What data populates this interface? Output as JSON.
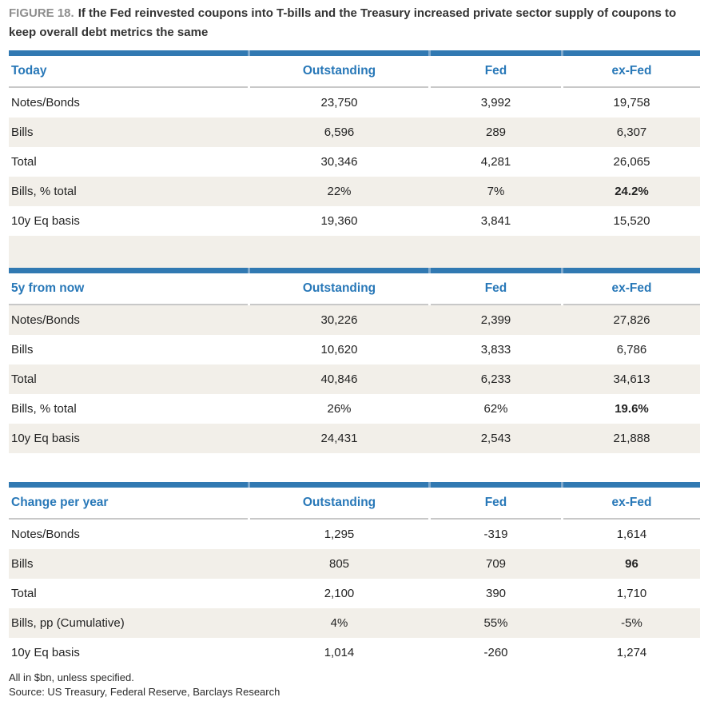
{
  "figure": {
    "label": "FIGURE 18.",
    "title": "If the Fed reinvested coupons into T-bills and the Treasury increased private sector supply of coupons to keep overall debt metrics the same"
  },
  "colors": {
    "accent_blue_bar": "#3179B2",
    "accent_blue_text": "#2878B8",
    "stripe_beige": "#F2EFE9",
    "divider_gray": "#C8C8C8",
    "figure_label_gray": "#8E8E8E",
    "text_dark": "#232323"
  },
  "columns": [
    "Outstanding",
    "Fed",
    "ex-Fed"
  ],
  "tables": [
    {
      "title": "Today",
      "first_row_shaded": false,
      "spacer_after": "shaded",
      "rows": [
        {
          "label": "Notes/Bonds",
          "values": [
            "23,750",
            "3,992",
            "19,758"
          ],
          "bold": []
        },
        {
          "label": "Bills",
          "values": [
            "6,596",
            "289",
            "6,307"
          ],
          "bold": []
        },
        {
          "label": "Total",
          "values": [
            "30,346",
            "4,281",
            "26,065"
          ],
          "bold": []
        },
        {
          "label": "Bills, % total",
          "values": [
            "22%",
            "7%",
            "24.2%"
          ],
          "bold": [
            2
          ]
        },
        {
          "label": "10y Eq basis",
          "values": [
            "19,360",
            "3,841",
            "15,520"
          ],
          "bold": []
        }
      ]
    },
    {
      "title": "5y from now",
      "first_row_shaded": true,
      "spacer_after": "plain",
      "rows": [
        {
          "label": "Notes/Bonds",
          "values": [
            "30,226",
            "2,399",
            "27,826"
          ],
          "bold": []
        },
        {
          "label": "Bills",
          "values": [
            "10,620",
            "3,833",
            "6,786"
          ],
          "bold": []
        },
        {
          "label": "Total",
          "values": [
            "40,846",
            "6,233",
            "34,613"
          ],
          "bold": []
        },
        {
          "label": "Bills, % total",
          "values": [
            "26%",
            "62%",
            "19.6%"
          ],
          "bold": [
            2
          ]
        },
        {
          "label": "10y Eq basis",
          "values": [
            "24,431",
            "2,543",
            "21,888"
          ],
          "bold": []
        }
      ]
    },
    {
      "title": "Change per year",
      "first_row_shaded": false,
      "spacer_after": "none",
      "rows": [
        {
          "label": "Notes/Bonds",
          "values": [
            "1,295",
            "-319",
            "1,614"
          ],
          "bold": []
        },
        {
          "label": "Bills",
          "values": [
            "805",
            "709",
            "96"
          ],
          "bold": [
            2
          ]
        },
        {
          "label": "Total",
          "values": [
            "2,100",
            "390",
            "1,710"
          ],
          "bold": []
        },
        {
          "label": "Bills, pp (Cumulative)",
          "values": [
            "4%",
            "55%",
            "-5%"
          ],
          "bold": []
        },
        {
          "label": "10y Eq basis",
          "values": [
            "1,014",
            "-260",
            "1,274"
          ],
          "bold": []
        }
      ]
    }
  ],
  "footnotes": [
    "All in $bn, unless specified.",
    "Source: US Treasury, Federal Reserve, Barclays Research"
  ]
}
